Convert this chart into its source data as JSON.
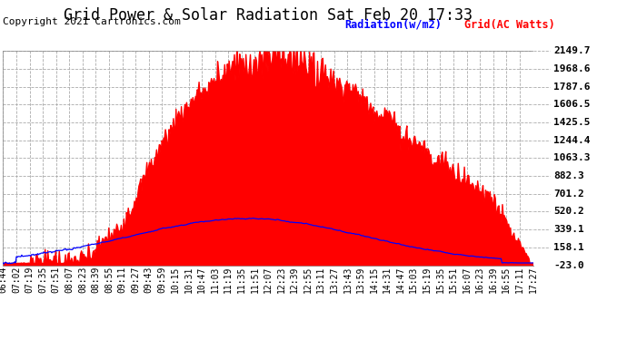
{
  "title": "Grid Power & Solar Radiation Sat Feb 20 17:33",
  "copyright": "Copyright 2021 Cartronics.com",
  "legend_radiation": "Radiation(w/m2)",
  "legend_grid": "Grid(AC Watts)",
  "yticks": [
    2149.7,
    1968.6,
    1787.6,
    1606.5,
    1425.5,
    1244.4,
    1063.3,
    882.3,
    701.2,
    520.2,
    339.1,
    158.1,
    -23.0
  ],
  "ymin": -23.0,
  "ymax": 2149.7,
  "fig_bg_color": "#ffffff",
  "plot_bg_color": "#ffffff",
  "grid_color": "#aaaaaa",
  "fill_color": "#ff0000",
  "line_color_blue": "#0000ff",
  "title_fontsize": 12,
  "copyright_fontsize": 8,
  "tick_fontsize": 7,
  "ytick_fontsize": 8,
  "xtick_labels": [
    "06:44",
    "07:02",
    "07:19",
    "07:35",
    "07:51",
    "08:07",
    "08:23",
    "08:39",
    "08:55",
    "09:11",
    "09:27",
    "09:43",
    "09:59",
    "10:15",
    "10:31",
    "10:47",
    "11:03",
    "11:19",
    "11:35",
    "11:51",
    "12:07",
    "12:23",
    "12:39",
    "12:55",
    "13:11",
    "13:27",
    "13:43",
    "13:59",
    "14:15",
    "14:31",
    "14:47",
    "15:03",
    "15:19",
    "15:35",
    "15:51",
    "16:07",
    "16:23",
    "16:39",
    "16:55",
    "17:11",
    "17:27"
  ]
}
